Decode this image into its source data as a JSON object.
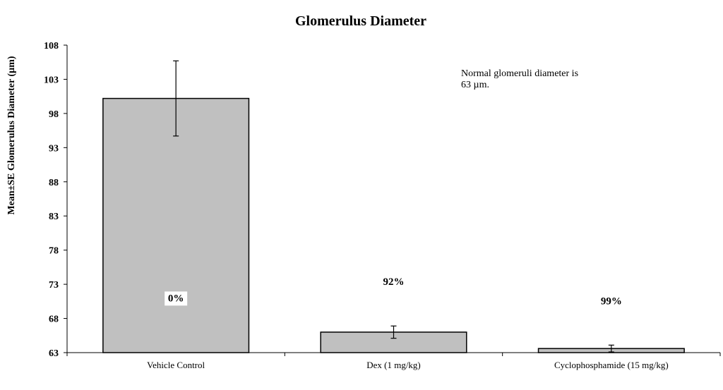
{
  "chart_data": {
    "type": "bar",
    "title": "Glomerulus Diameter",
    "xlabel": "",
    "ylabel": "Mean±SE Glomerulus Diameter (µm)",
    "ylim": [
      63,
      108
    ],
    "yticks": [
      63,
      68,
      73,
      78,
      83,
      88,
      93,
      98,
      103,
      108
    ],
    "grid": false,
    "categories": [
      "Vehicle Control",
      "Dex (1 mg/kg)",
      "Cyclophosphamide (15 mg/kg)"
    ],
    "values": [
      100.2,
      66.0,
      63.6
    ],
    "errors": [
      5.5,
      0.9,
      0.5
    ],
    "bar_labels": [
      "0%",
      "92%",
      "99%"
    ],
    "bar_color": "#c0c0c0",
    "annotation": {
      "lines": [
        "Normal glomeruli diameter is",
        "63 µm."
      ]
    }
  }
}
